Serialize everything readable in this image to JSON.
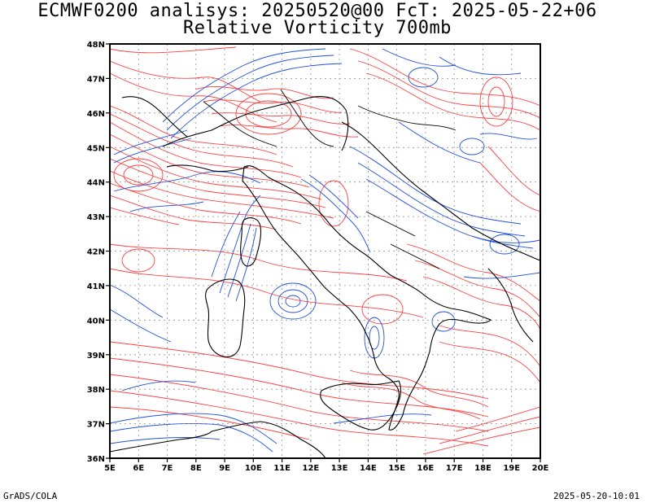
{
  "title_line1": "ECMWF0200 analisys: 20250520@00 FcT: 2025-05-22+06",
  "title_line2": "Relative Vorticity 700mb",
  "lon_labels": [
    "5E",
    "6E",
    "7E",
    "8E",
    "9E",
    "10E",
    "11E",
    "12E",
    "13E",
    "14E",
    "15E",
    "16E",
    "17E",
    "18E",
    "19E",
    "20E"
  ],
  "lat_labels": [
    "48N",
    "47N",
    "46N",
    "45N",
    "44N",
    "43N",
    "42N",
    "41N",
    "40N",
    "39N",
    "38N",
    "37N",
    "36N"
  ],
  "footer_left": "GrADS/COLA",
  "footer_right": "2025-05-20-10:01",
  "colors": {
    "positive": "#ff4040",
    "negative": "#2050e0",
    "coast": "#000000",
    "grid": "#909090",
    "zero": "#c080c0"
  }
}
